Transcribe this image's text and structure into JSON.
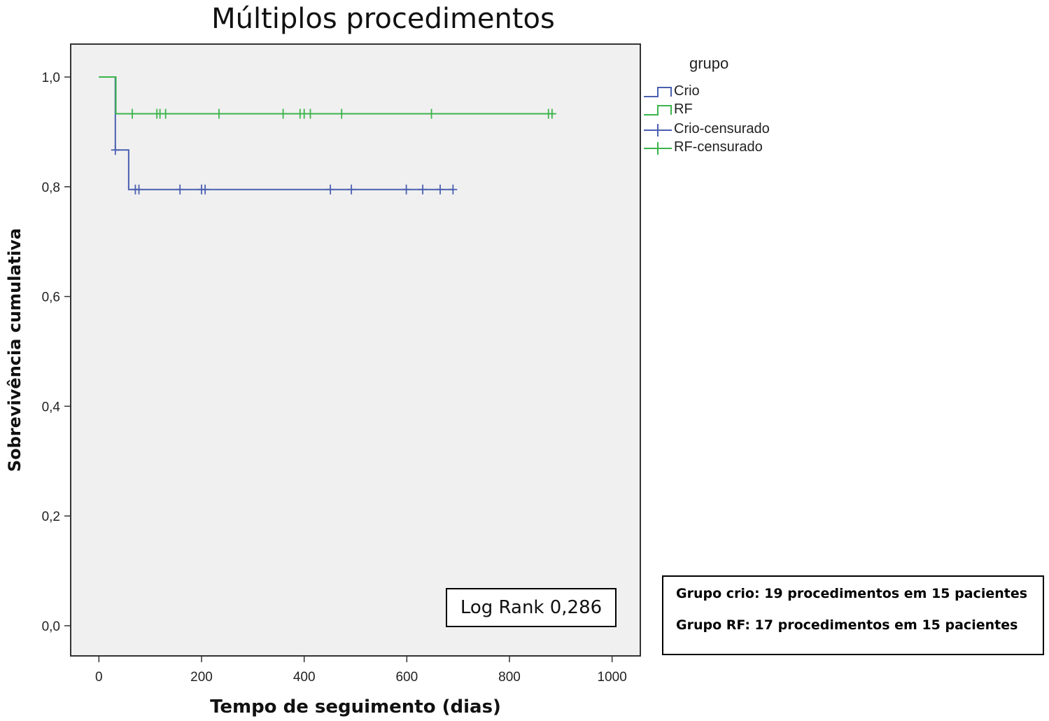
{
  "chart_data": {
    "type": "line",
    "subtype": "kaplan-meier-step",
    "title": "Múltiplos procedimentos",
    "xlabel": "Tempo de seguimento (dias)",
    "ylabel": "Sobrevivência cumulativa",
    "xlim": [
      -55,
      1055
    ],
    "ylim": [
      -0.055,
      1.06
    ],
    "x_ticks": [
      0,
      200,
      400,
      600,
      800,
      1000
    ],
    "x_tick_labels": [
      "0",
      "200",
      "400",
      "600",
      "800",
      "1000"
    ],
    "y_ticks": [
      0.0,
      0.2,
      0.4,
      0.6,
      0.8,
      1.0
    ],
    "y_tick_labels": [
      "0,0",
      "0,2",
      "0,4",
      "0,6",
      "0,8",
      "1,0"
    ],
    "grid": false,
    "legend": {
      "title": "grupo",
      "position": "right",
      "entries": [
        "Crio",
        "RF",
        "Crio-censurado",
        "RF-censurado"
      ]
    },
    "series": [
      {
        "name": "Crio",
        "color": "#4a5fb0",
        "steps": [
          [
            0,
            1.0
          ],
          [
            32,
            0.867
          ],
          [
            58,
            0.795
          ],
          [
            692,
            0.795
          ]
        ],
        "censored": [
          [
            32,
            0.867
          ],
          [
            71,
            0.795
          ],
          [
            78,
            0.795
          ],
          [
            158,
            0.795
          ],
          [
            200,
            0.795
          ],
          [
            207,
            0.795
          ],
          [
            451,
            0.795
          ],
          [
            492,
            0.795
          ],
          [
            599,
            0.795
          ],
          [
            631,
            0.795
          ],
          [
            665,
            0.795
          ],
          [
            690,
            0.795
          ]
        ]
      },
      {
        "name": "RF",
        "color": "#3cb44b",
        "steps": [
          [
            0,
            1.0
          ],
          [
            33,
            0.933
          ],
          [
            887,
            0.933
          ]
        ],
        "censored": [
          [
            65,
            0.933
          ],
          [
            113,
            0.933
          ],
          [
            119,
            0.933
          ],
          [
            130,
            0.933
          ],
          [
            234,
            0.933
          ],
          [
            359,
            0.933
          ],
          [
            392,
            0.933
          ],
          [
            400,
            0.933
          ],
          [
            412,
            0.933
          ],
          [
            473,
            0.933
          ],
          [
            648,
            0.933
          ],
          [
            876,
            0.933
          ],
          [
            883,
            0.933
          ]
        ]
      }
    ]
  },
  "annotations": {
    "log_rank": "Log Rank 0,286",
    "info_lines": [
      "Grupo crio: 19 procedimentos em 15 pacientes",
      "Grupo RF: 17 procedimentos em 15 pacientes"
    ]
  }
}
